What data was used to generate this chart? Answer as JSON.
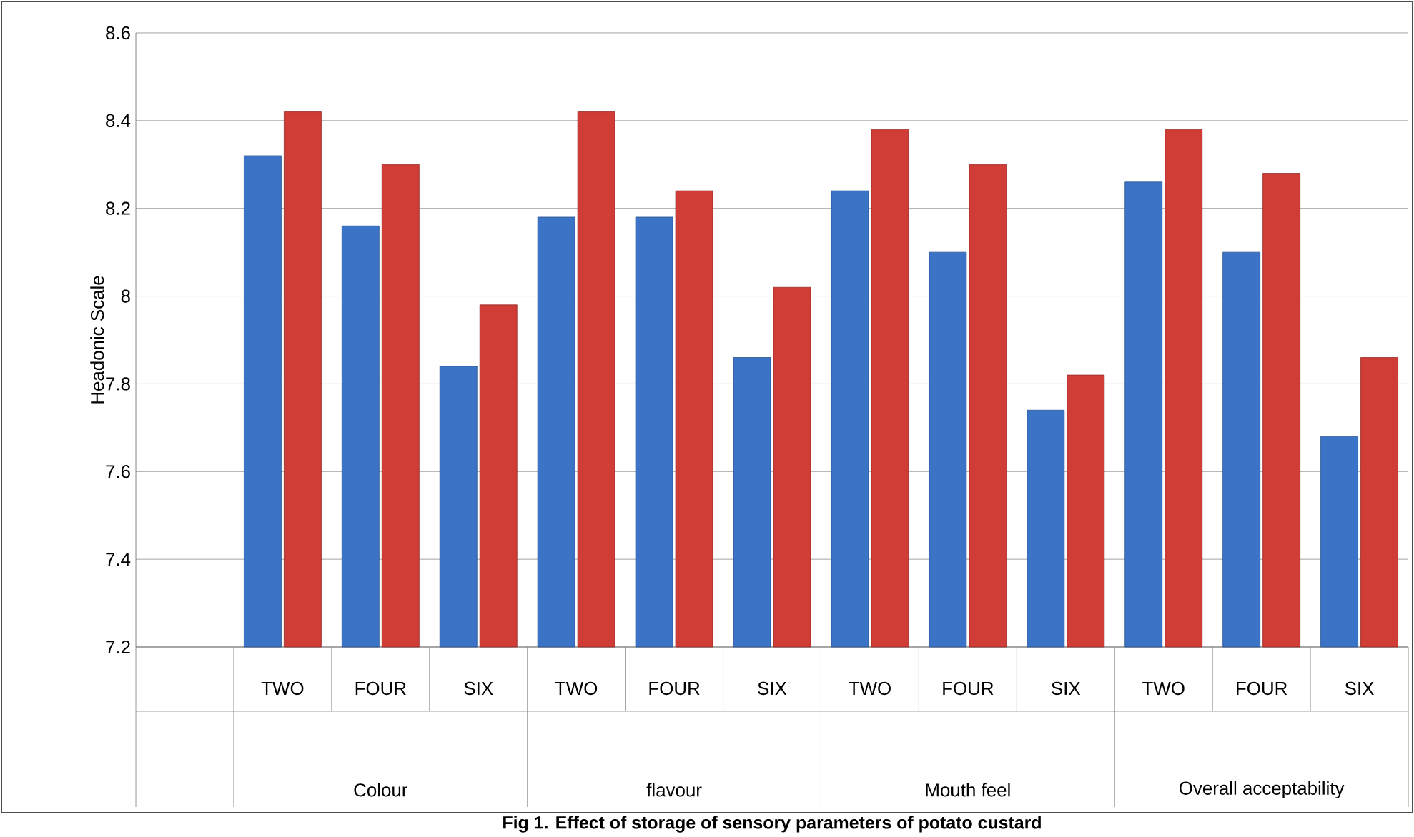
{
  "chart_data": {
    "type": "bar",
    "title": "Fig 1. Effect of storage of sensory parameters of potato custard",
    "ylabel": "Headonic Scale",
    "categories": [
      null,
      "TWO",
      "FOUR",
      "SIX",
      "TWO",
      "FOUR",
      "SIX",
      "TWO",
      "FOUR",
      "SIX",
      "TWO",
      "FOUR",
      "SIX"
    ],
    "annotations": [
      "Colour",
      "flavour",
      "Mouth feel",
      "Overall acceptability"
    ],
    "series": [
      {
        "color": "#3b74c6",
        "values": [
          null,
          8.32,
          8.16,
          7.84,
          8.18,
          8.18,
          7.86,
          8.24,
          8.1,
          7.74,
          8.26,
          8.1,
          7.68
        ]
      },
      {
        "color": "#d03c36",
        "values": [
          null,
          8.42,
          8.3,
          7.98,
          8.42,
          8.24,
          8.02,
          8.38,
          8.3,
          7.82,
          8.38,
          8.28,
          7.86
        ]
      }
    ],
    "ylim": [
      7.2,
      8.6
    ],
    "yticks": [
      7.2,
      7.4,
      7.6,
      7.8,
      8,
      8.2,
      8.4,
      8.6
    ],
    "grid": "y"
  }
}
